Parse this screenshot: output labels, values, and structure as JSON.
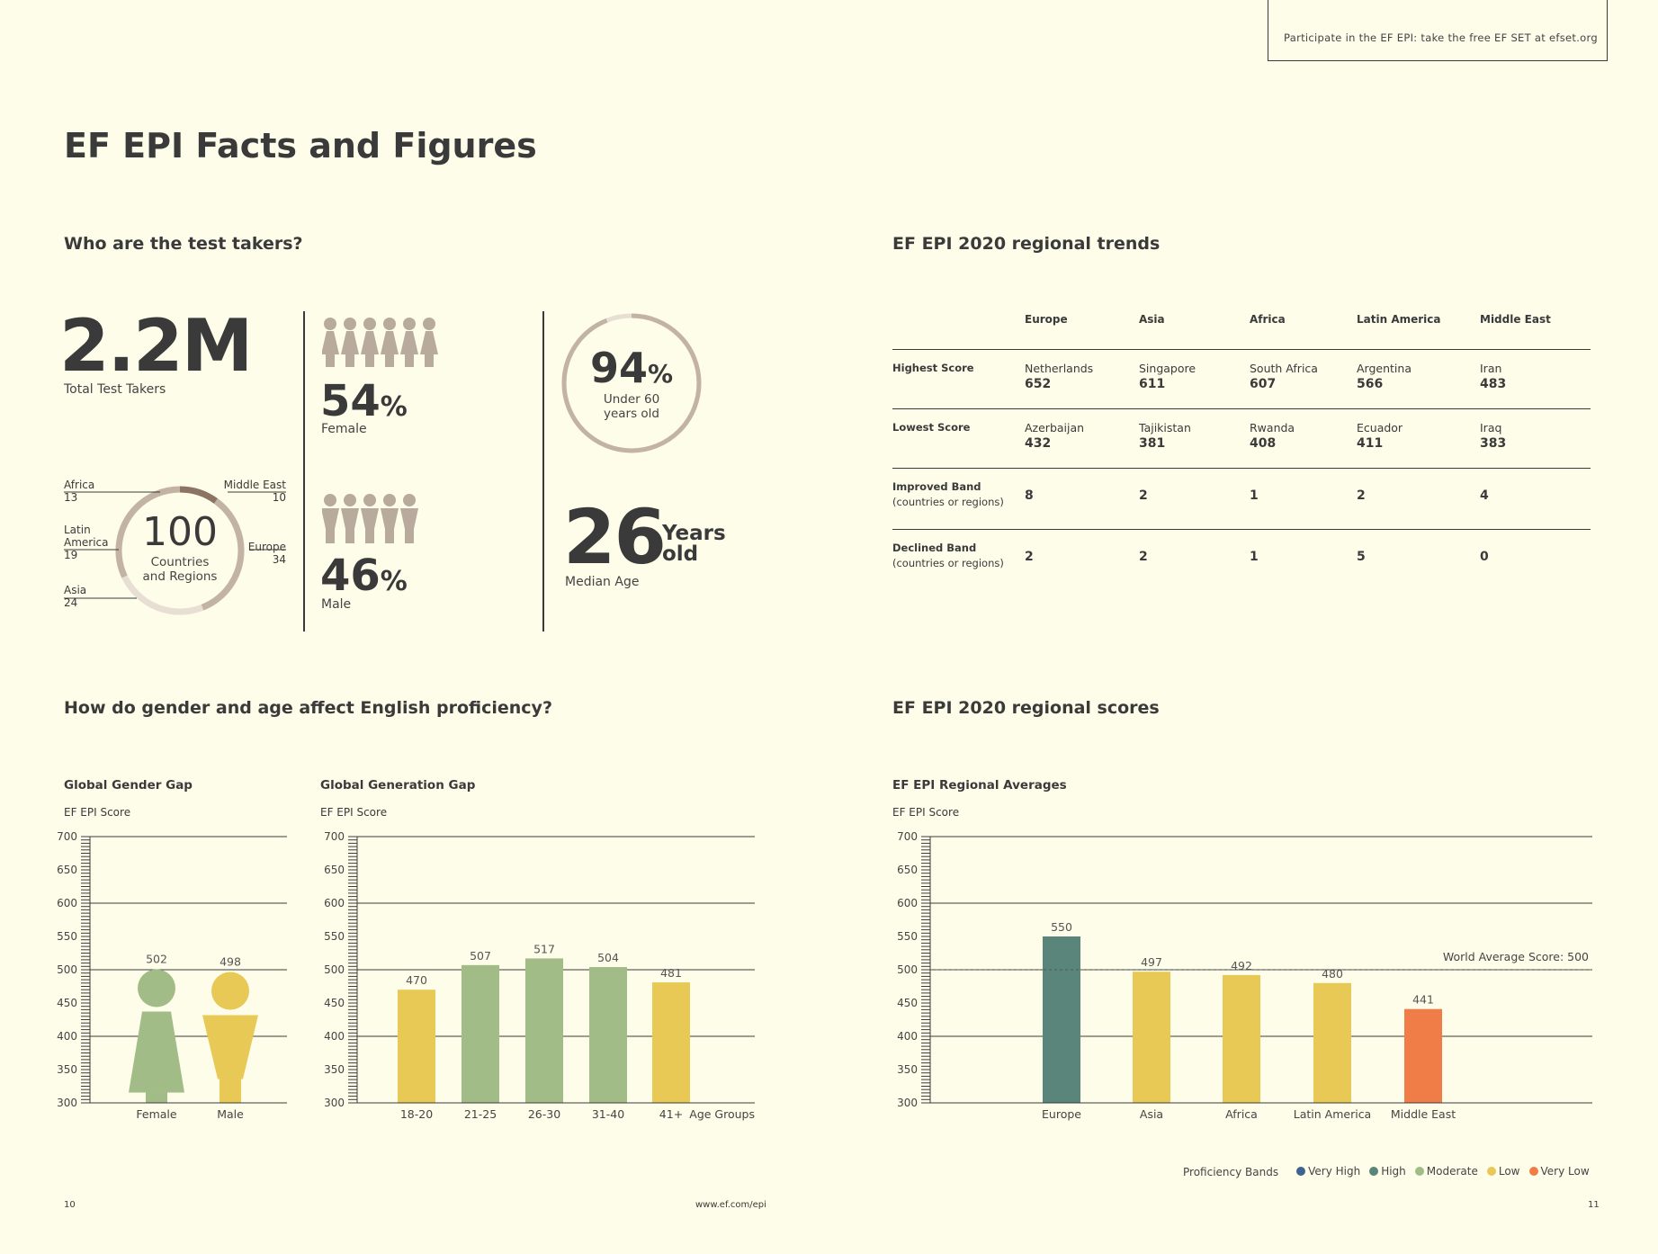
{
  "header": {
    "cta": "Participate in the EF EPI: take the free EF SET at efset.org",
    "title": "EF EPI Facts and Figures"
  },
  "left_top": {
    "heading": "Who are the test takers?",
    "total": "2.2M",
    "total_label": "Total Test Takers",
    "female_pct": "54",
    "female_label": "Female",
    "male_pct": "46",
    "male_label": "Male",
    "pct_sign": "%",
    "under60_pct": "94",
    "under60_label_1": "Under 60",
    "under60_label_2": "years old",
    "median_age": "26",
    "median_unit_1": "Years",
    "median_unit_2": "old",
    "median_label": "Median Age",
    "countries_count": "100",
    "countries_label_1": "Countries",
    "countries_label_2": "and Regions",
    "regions": [
      {
        "name": "Africa",
        "count": "13"
      },
      {
        "name": "Latin",
        "name2": "America",
        "count": "19"
      },
      {
        "name": "Asia",
        "count": "24"
      },
      {
        "name": "Middle East",
        "count": "10"
      },
      {
        "name": "Europe",
        "count": "34"
      }
    ],
    "colors": {
      "figure": "#b8aa9c",
      "ring": "#c2b3a4",
      "ring_light": "#e7dfd3",
      "ring_dark": "#8c7463"
    }
  },
  "right_top": {
    "heading": "EF EPI 2020 regional trends",
    "columns": [
      "Europe",
      "Asia",
      "Africa",
      "Latin America",
      "Middle East"
    ],
    "rows": [
      {
        "label": "Highest Score",
        "sub": "",
        "cells": [
          {
            "name": "Netherlands",
            "value": "652"
          },
          {
            "name": "Singapore",
            "value": "611"
          },
          {
            "name": "South Africa",
            "value": "607"
          },
          {
            "name": "Argentina",
            "value": "566"
          },
          {
            "name": "Iran",
            "value": "483"
          }
        ]
      },
      {
        "label": "Lowest Score",
        "sub": "",
        "cells": [
          {
            "name": "Azerbaijan",
            "value": "432"
          },
          {
            "name": "Tajikistan",
            "value": "381"
          },
          {
            "name": "Rwanda",
            "value": "408"
          },
          {
            "name": "Ecuador",
            "value": "411"
          },
          {
            "name": "Iraq",
            "value": "383"
          }
        ]
      },
      {
        "label": "Improved Band",
        "sub": "(countries or regions)",
        "cells": [
          {
            "name": "",
            "value": "8"
          },
          {
            "name": "",
            "value": "2"
          },
          {
            "name": "",
            "value": "1"
          },
          {
            "name": "",
            "value": "2"
          },
          {
            "name": "",
            "value": "4"
          }
        ]
      },
      {
        "label": "Declined Band",
        "sub": "(countries or regions)",
        "cells": [
          {
            "name": "",
            "value": "2"
          },
          {
            "name": "",
            "value": "2"
          },
          {
            "name": "",
            "value": "1"
          },
          {
            "name": "",
            "value": "5"
          },
          {
            "name": "",
            "value": "0"
          }
        ]
      }
    ]
  },
  "left_bottom": {
    "heading": "How do gender and age affect English proficiency?"
  },
  "right_bottom": {
    "heading": "EF EPI 2020 regional scores"
  },
  "chart_data": [
    {
      "type": "bar",
      "title": "Global Gender Gap",
      "ylabel": "EF EPI Score",
      "xlabel": "",
      "ylim": [
        300,
        700
      ],
      "yticks": [
        300,
        350,
        400,
        450,
        500,
        550,
        600,
        650,
        700
      ],
      "categories": [
        "Female",
        "Male"
      ],
      "values": [
        502,
        498
      ],
      "colors": [
        "#a2bc88",
        "#e8c955"
      ]
    },
    {
      "type": "bar",
      "title": "Global Generation Gap",
      "ylabel": "EF EPI Score",
      "xlabel": "Age Groups",
      "ylim": [
        300,
        700
      ],
      "yticks": [
        300,
        350,
        400,
        450,
        500,
        550,
        600,
        650,
        700
      ],
      "categories": [
        "18-20",
        "21-25",
        "26-30",
        "31-40",
        "41+"
      ],
      "values": [
        470,
        507,
        517,
        504,
        481
      ],
      "colors": [
        "#e8c955",
        "#a2bc88",
        "#a2bc88",
        "#a2bc88",
        "#e8c955"
      ]
    },
    {
      "type": "bar",
      "title": "EF EPI Regional Averages",
      "ylabel": "EF EPI Score",
      "xlabel": "",
      "ylim": [
        300,
        700
      ],
      "yticks": [
        300,
        350,
        400,
        450,
        500,
        550,
        600,
        650,
        700
      ],
      "categories": [
        "Europe",
        "Asia",
        "Africa",
        "Latin America",
        "Middle East"
      ],
      "values": [
        550,
        497,
        492,
        480,
        441
      ],
      "colors": [
        "#5a857a",
        "#e8c955",
        "#e8c955",
        "#e8c955",
        "#f07d48"
      ],
      "reference": {
        "label": "World Average Score: 500",
        "value": 500
      },
      "legend": {
        "title": "Proficiency Bands",
        "items": [
          {
            "label": "Very High",
            "color": "#3d6390"
          },
          {
            "label": "High",
            "color": "#5a857a"
          },
          {
            "label": "Moderate",
            "color": "#a2bc88"
          },
          {
            "label": "Low",
            "color": "#e8c955"
          },
          {
            "label": "Very Low",
            "color": "#f07d48"
          }
        ]
      }
    }
  ],
  "footer": {
    "page_left": "10",
    "url": "www.ef.com/epi",
    "page_right": "11"
  }
}
